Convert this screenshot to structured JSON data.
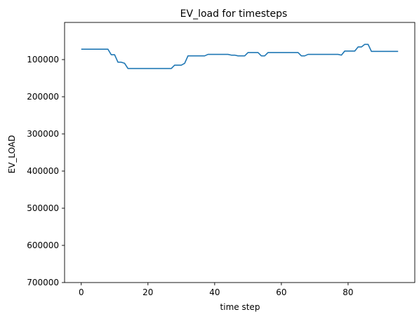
{
  "chart_data": {
    "type": "line",
    "title": "EV_load for timesteps",
    "xlabel": "time step",
    "ylabel": "EV_LOAD",
    "xlim": [
      -5,
      100
    ],
    "ylim": [
      700000,
      0
    ],
    "y_inverted": true,
    "x_ticks": [
      0,
      20,
      40,
      60,
      80
    ],
    "x_tick_labels": [
      "0",
      "20",
      "40",
      "60",
      "80"
    ],
    "y_ticks": [
      100000,
      200000,
      300000,
      400000,
      500000,
      600000,
      700000
    ],
    "y_tick_labels": [
      "100000",
      "200000",
      "300000",
      "400000",
      "500000",
      "600000",
      "700000"
    ],
    "grid": false,
    "line_color": "#1f77b4",
    "series": [
      {
        "x": [
          0,
          1,
          2,
          3,
          4,
          5,
          6,
          7,
          8,
          9,
          10,
          11,
          12,
          13,
          14,
          15,
          16,
          17,
          18,
          19,
          20,
          21,
          22,
          23,
          24,
          25,
          26,
          27,
          28,
          29,
          30,
          31,
          32,
          33,
          34,
          35,
          36,
          37,
          38,
          39,
          40,
          41,
          42,
          43,
          44,
          45,
          46,
          47,
          48,
          49,
          50,
          51,
          52,
          53,
          54,
          55,
          56,
          57,
          58,
          59,
          60,
          61,
          62,
          63,
          64,
          65,
          66,
          67,
          68,
          69,
          70,
          71,
          72,
          73,
          74,
          75,
          76,
          77,
          78,
          79,
          80,
          81,
          82,
          83,
          84,
          85,
          86,
          87,
          88,
          89,
          90,
          91,
          92,
          93,
          94,
          95
        ],
        "values": [
          72000,
          72000,
          72000,
          72000,
          72000,
          72000,
          72000,
          72000,
          72000,
          87000,
          87000,
          107000,
          107000,
          110000,
          124000,
          124000,
          124000,
          124000,
          124000,
          124000,
          124000,
          124000,
          124000,
          124000,
          124000,
          124000,
          124000,
          124000,
          115000,
          115000,
          115000,
          110000,
          90000,
          90000,
          90000,
          90000,
          90000,
          90000,
          86000,
          86000,
          86000,
          86000,
          86000,
          86000,
          86000,
          88000,
          88000,
          90000,
          90000,
          90000,
          81000,
          81000,
          81000,
          81000,
          90000,
          90000,
          81000,
          81000,
          81000,
          81000,
          81000,
          81000,
          81000,
          81000,
          81000,
          81000,
          90000,
          90000,
          86000,
          86000,
          86000,
          86000,
          86000,
          86000,
          86000,
          86000,
          86000,
          86000,
          88000,
          77000,
          77000,
          77000,
          77000,
          66000,
          66000,
          59000,
          59000,
          78000,
          78000,
          78000,
          78000,
          78000,
          78000,
          78000,
          78000,
          78000
        ]
      }
    ]
  }
}
